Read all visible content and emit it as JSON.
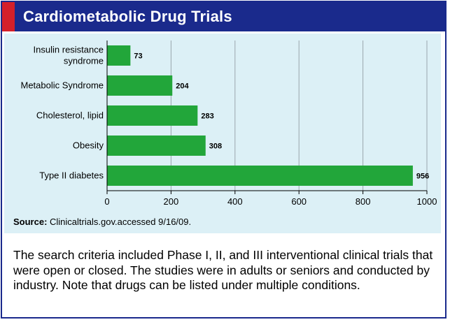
{
  "title": "Cardiometabolic Drug Trials",
  "chart_data": {
    "type": "bar",
    "orientation": "horizontal",
    "categories": [
      "Insulin resistance syndrome",
      "Metabolic Syndrome",
      "Cholesterol, lipid",
      "Obesity",
      "Type II diabetes"
    ],
    "category_lines": [
      [
        "Insulin resistance",
        "syndrome"
      ],
      [
        "Metabolic Syndrome"
      ],
      [
        "Cholesterol, lipid"
      ],
      [
        "Obesity"
      ],
      [
        "Type II diabetes"
      ]
    ],
    "values": [
      73,
      204,
      283,
      308,
      956
    ],
    "xlim": [
      0,
      1000
    ],
    "xticks": [
      0,
      200,
      400,
      600,
      800,
      1000
    ],
    "bar_color": "#22a63a",
    "grid": true
  },
  "source": {
    "label": "Source:",
    "text": " Clinicaltrials.gov.accessed 9/16/09."
  },
  "note": "The search criteria included Phase I, II, and III interventional clinical trials that were open or closed. The studies were in adults or seniors and conducted by industry. Note that drugs can be listed under multiple conditions."
}
